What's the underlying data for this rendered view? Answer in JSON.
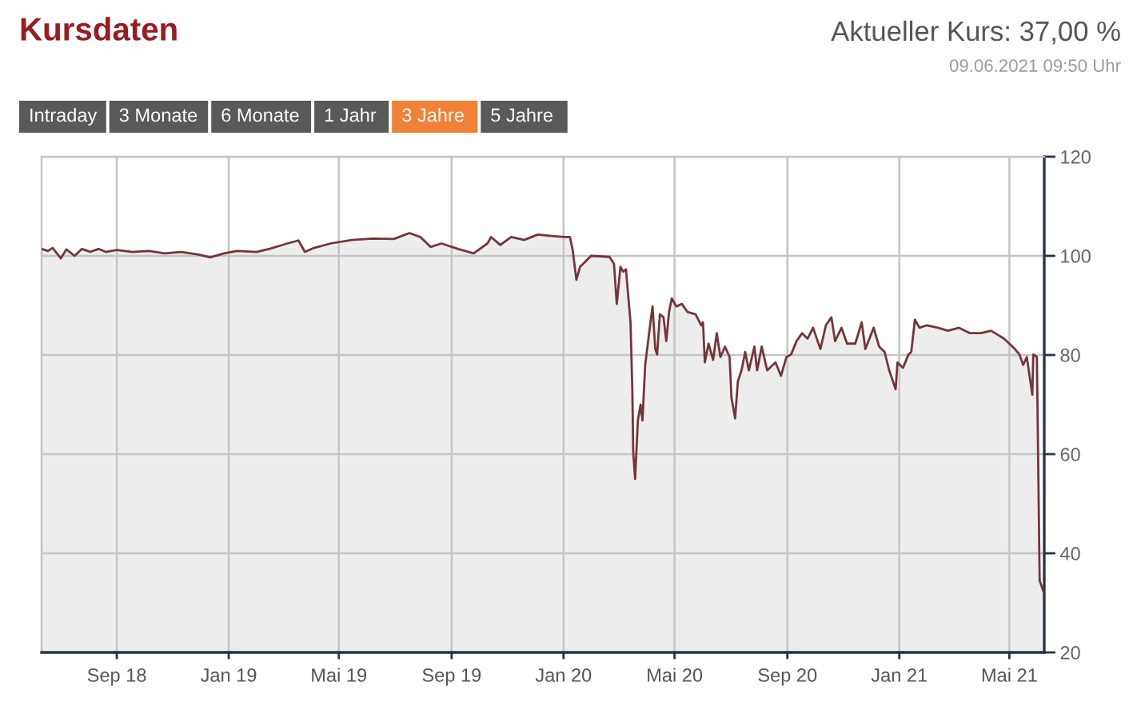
{
  "chart_data": {
    "type": "area",
    "title": "Kursdaten",
    "annotations": [
      "Aktueller Kurs: 37,00 %",
      "09.06.2021 09:50 Uhr",
      "Intraday",
      "3 Monate",
      "6 Monate",
      "1 Jahr",
      "3 Jahre",
      "5 Jahre"
    ],
    "color": "#74353a",
    "x": [
      "2018-06-11",
      "2018-06-18",
      "2018-06-23",
      "2018-07-02",
      "2018-07-08",
      "2018-07-17",
      "2018-07-25",
      "2018-08-03",
      "2018-08-12",
      "2018-08-20",
      "2018-09-01",
      "2018-09-18",
      "2018-10-06",
      "2018-10-23",
      "2018-11-10",
      "2018-11-28",
      "2018-12-12",
      "2018-12-27",
      "2019-01-10",
      "2019-01-31",
      "2019-02-14",
      "2019-03-06",
      "2019-03-18",
      "2019-03-25",
      "2019-04-04",
      "2019-04-22",
      "2019-05-15",
      "2019-06-07",
      "2019-06-30",
      "2019-07-17",
      "2019-07-29",
      "2019-08-09",
      "2019-08-21",
      "2019-09-08",
      "2019-09-25",
      "2019-10-10",
      "2019-10-14",
      "2019-10-24",
      "2019-11-05",
      "2019-11-19",
      "2019-12-04",
      "2019-12-19",
      "2020-01-02",
      "2020-01-08",
      "2020-01-11",
      "2020-01-15",
      "2020-01-19",
      "2020-01-31",
      "2020-02-20",
      "2020-02-25",
      "2020-02-28",
      "2020-03-03",
      "2020-03-06",
      "2020-03-09",
      "2020-03-14",
      "2020-03-16",
      "2020-03-17",
      "2020-03-19",
      "2020-03-22",
      "2020-03-25",
      "2020-03-27",
      "2020-03-30",
      "2020-04-04",
      "2020-04-07",
      "2020-04-10",
      "2020-04-12",
      "2020-04-15",
      "2020-04-19",
      "2020-04-22",
      "2020-04-25",
      "2020-04-28",
      "2020-05-03",
      "2020-05-09",
      "2020-05-15",
      "2020-05-24",
      "2020-05-30",
      "2020-06-01",
      "2020-06-03",
      "2020-06-07",
      "2020-06-12",
      "2020-06-16",
      "2020-06-20",
      "2020-06-25",
      "2020-06-30",
      "2020-07-02",
      "2020-07-06",
      "2020-07-09",
      "2020-07-13",
      "2020-07-17",
      "2020-07-21",
      "2020-07-27",
      "2020-07-30",
      "2020-08-04",
      "2020-08-10",
      "2020-08-19",
      "2020-08-25",
      "2020-08-31",
      "2020-09-05",
      "2020-09-11",
      "2020-09-17",
      "2020-09-23",
      "2020-09-29",
      "2020-10-04",
      "2020-10-07",
      "2020-10-13",
      "2020-10-19",
      "2020-10-23",
      "2020-10-30",
      "2020-11-05",
      "2020-11-14",
      "2020-11-21",
      "2020-11-25",
      "2020-12-04",
      "2020-12-10",
      "2020-12-16",
      "2020-12-21",
      "2020-12-28",
      "2020-12-30",
      "2021-01-05",
      "2021-01-11",
      "2021-01-14",
      "2021-01-18",
      "2021-01-23",
      "2021-01-31",
      "2021-02-12",
      "2021-02-23",
      "2021-03-07",
      "2021-03-19",
      "2021-03-31",
      "2021-04-11",
      "2021-04-20",
      "2021-04-25",
      "2021-05-01",
      "2021-05-07",
      "2021-05-12",
      "2021-05-16",
      "2021-05-20",
      "2021-05-23",
      "2021-05-26",
      "2021-05-27",
      "2021-05-31",
      "2021-06-03",
      "2021-06-08"
    ],
    "values": [
      101.4,
      101.0,
      101.6,
      99.5,
      101.3,
      100.0,
      101.4,
      100.8,
      101.4,
      100.8,
      101.2,
      100.8,
      101.0,
      100.5,
      100.8,
      100.3,
      99.7,
      100.5,
      101.0,
      100.8,
      101.4,
      102.5,
      103.1,
      100.8,
      101.6,
      102.5,
      103.2,
      103.5,
      103.4,
      104.6,
      103.8,
      101.8,
      102.5,
      101.4,
      100.5,
      102.5,
      103.8,
      102.2,
      103.8,
      103.2,
      104.3,
      104.0,
      103.8,
      103.8,
      101.1,
      95.2,
      97.8,
      100.0,
      99.8,
      98.4,
      90.3,
      97.8,
      96.8,
      97.3,
      86.6,
      72.7,
      60.3,
      55.0,
      66.8,
      70.0,
      66.8,
      78.0,
      85.5,
      89.8,
      81.2,
      80.1,
      88.2,
      87.6,
      82.8,
      88.7,
      91.4,
      89.8,
      90.3,
      88.7,
      88.2,
      86.0,
      86.6,
      78.5,
      82.3,
      79.0,
      84.4,
      79.6,
      81.7,
      79.6,
      71.5,
      67.2,
      74.7,
      76.9,
      80.6,
      76.9,
      81.7,
      76.9,
      81.7,
      76.9,
      78.5,
      75.8,
      79.6,
      80.1,
      82.8,
      84.4,
      83.3,
      85.5,
      82.8,
      81.2,
      86.0,
      87.6,
      82.8,
      85.5,
      82.3,
      82.3,
      86.6,
      81.2,
      85.5,
      81.7,
      80.6,
      76.9,
      73.1,
      78.5,
      77.4,
      80.1,
      80.6,
      87.1,
      85.5,
      86.0,
      85.5,
      84.9,
      85.5,
      84.4,
      84.4,
      84.9,
      83.9,
      83.3,
      82.3,
      81.2,
      80.1,
      78.0,
      79.6,
      75.8,
      72.0,
      80.1,
      79.6,
      34.5,
      31.8
    ],
    "xlim": [
      "2018-06-11",
      "2021-06-08"
    ],
    "xticks": [
      {
        "value": "2018-09-01",
        "label": "Sep 18"
      },
      {
        "value": "2019-01-01",
        "label": "Jan 19"
      },
      {
        "value": "2019-05-01",
        "label": "Mai 19"
      },
      {
        "value": "2019-09-01",
        "label": "Sep 19"
      },
      {
        "value": "2020-01-01",
        "label": "Jan 20"
      },
      {
        "value": "2020-05-01",
        "label": "Mai 20"
      },
      {
        "value": "2020-09-01",
        "label": "Sep 20"
      },
      {
        "value": "2021-01-01",
        "label": "Jan 21"
      },
      {
        "value": "2021-05-01",
        "label": "Mai 21"
      }
    ],
    "ylim": [
      20,
      120
    ],
    "yticks": [
      20,
      40,
      60,
      80,
      100,
      120
    ],
    "grid": true
  }
}
